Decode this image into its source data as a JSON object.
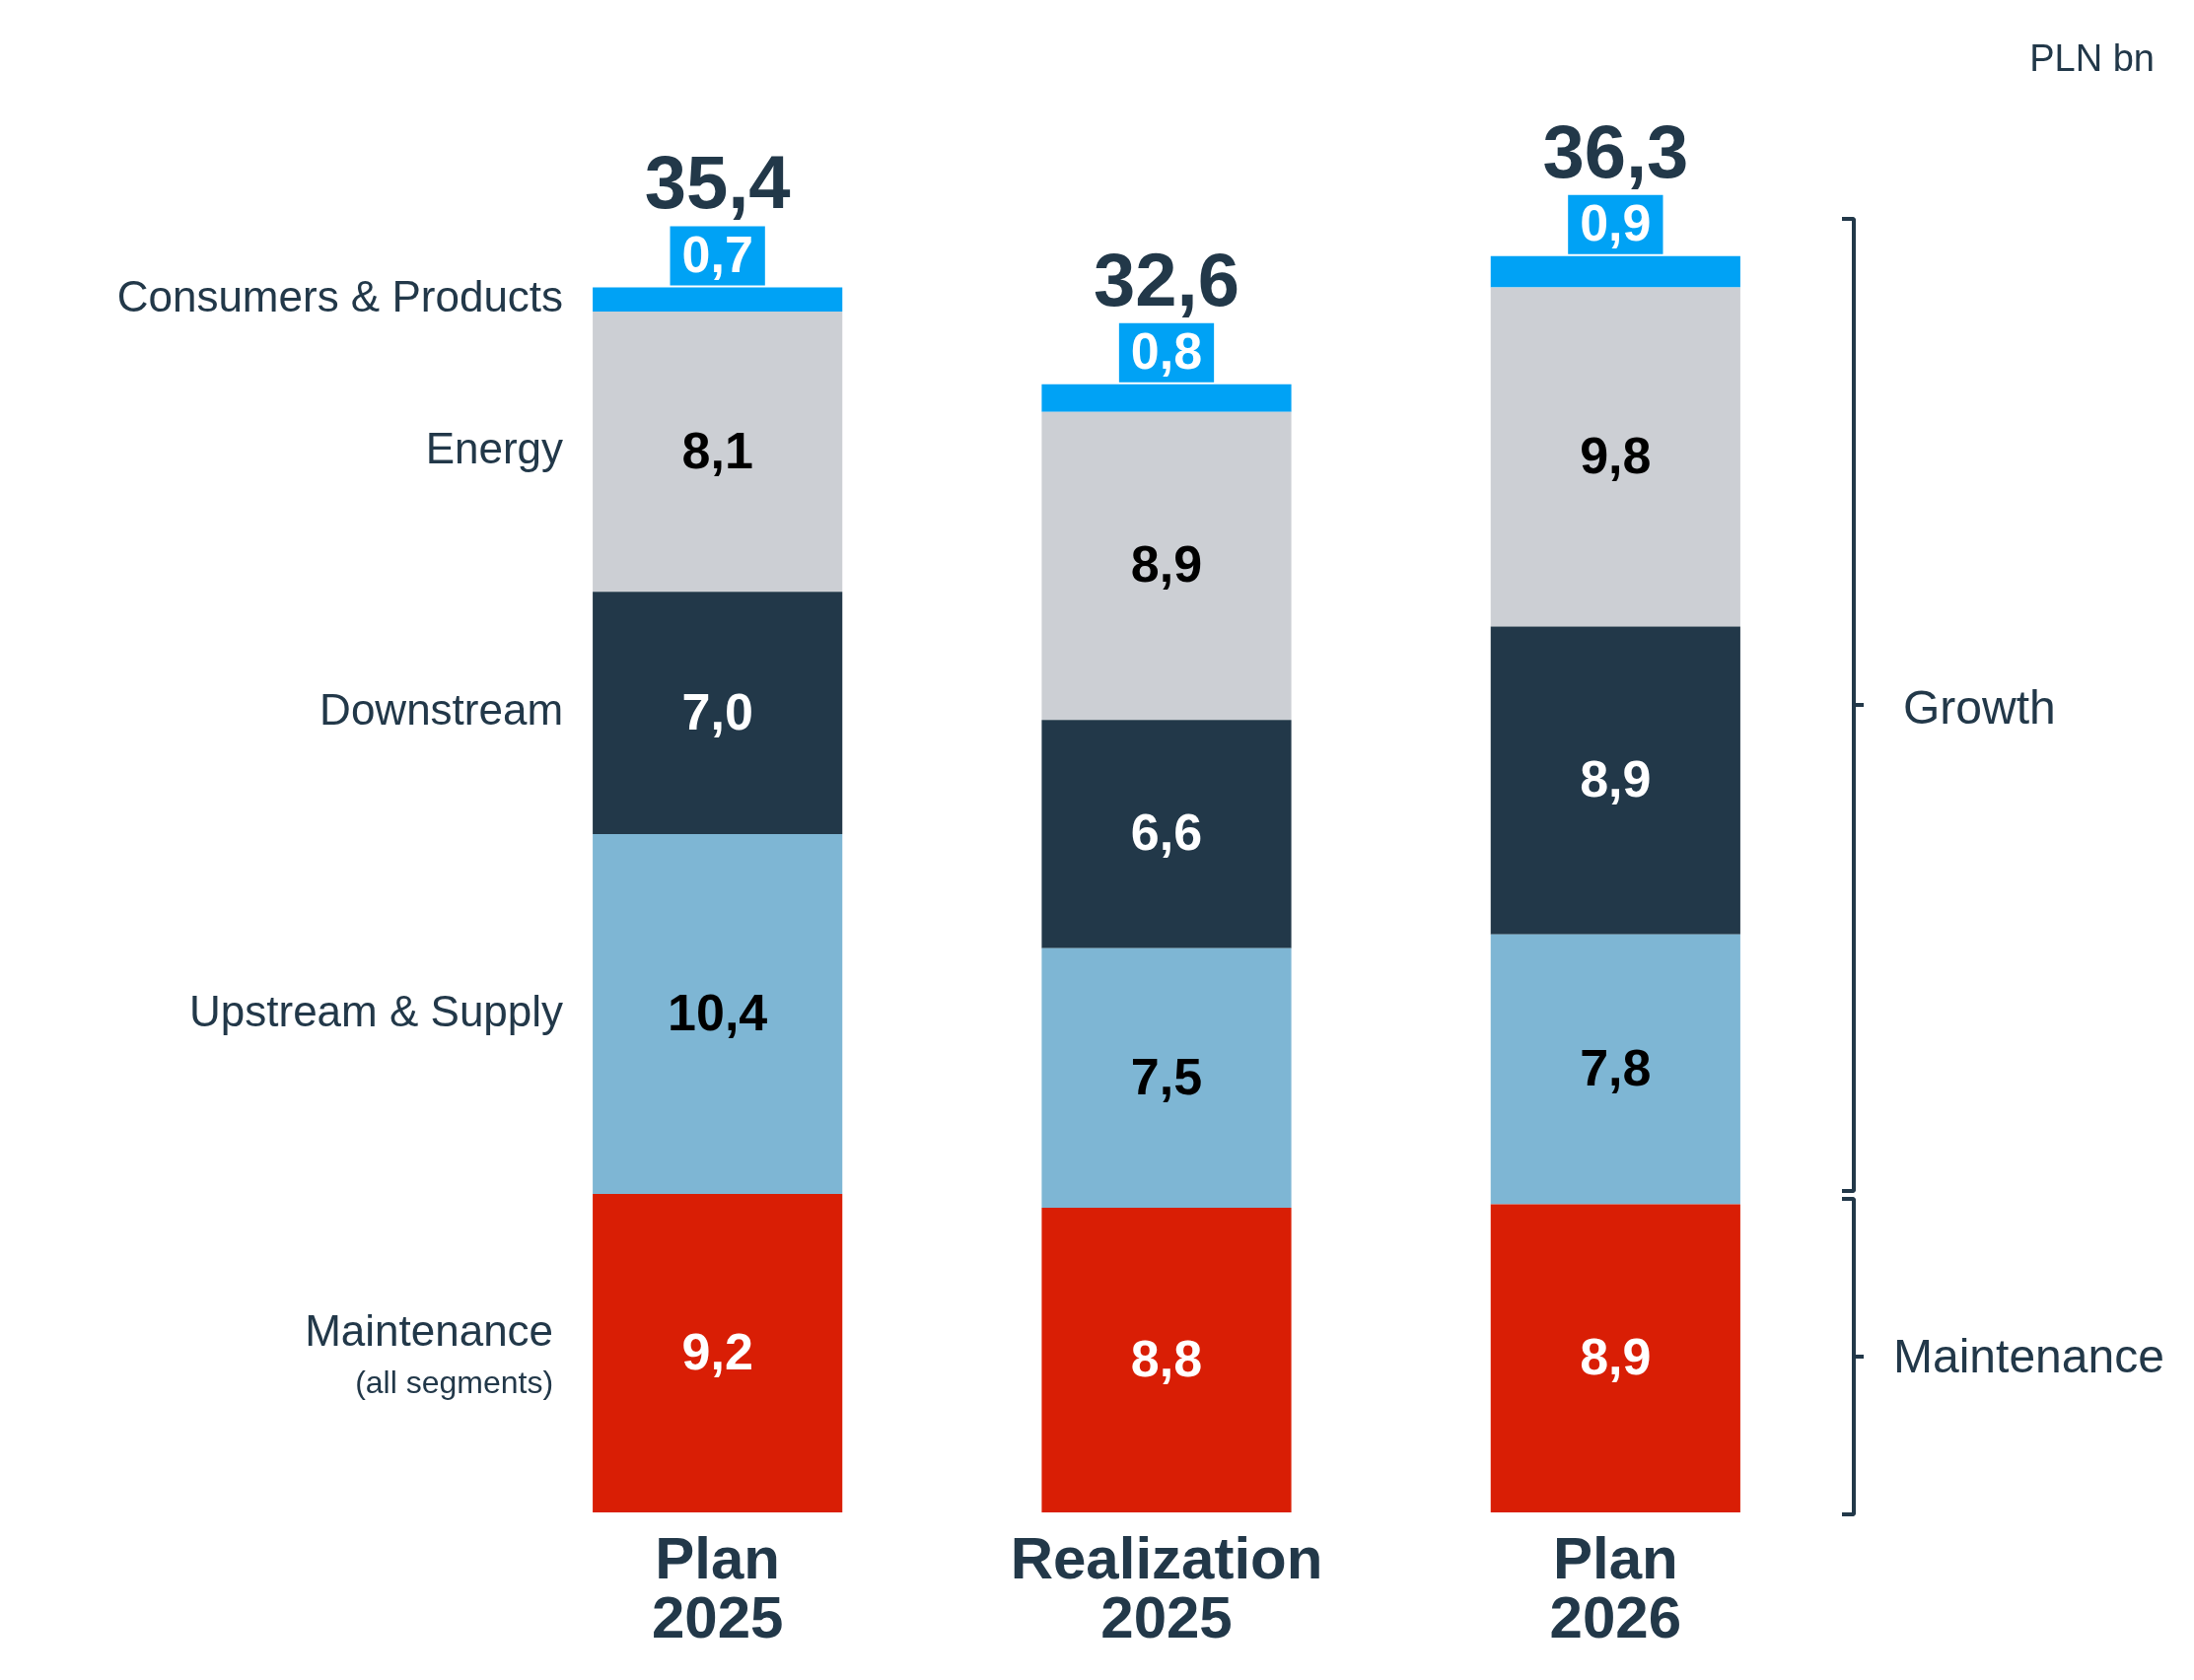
{
  "chart_data": {
    "type": "bar",
    "stacked": true,
    "categories": [
      "Plan 2025",
      "Realization 2025",
      "Plan 2026"
    ],
    "series": [
      {
        "name": "Maintenance (all segments)",
        "color": "#d91e05",
        "values": [
          9.2,
          8.8,
          8.9
        ],
        "value_labels": [
          "9,2",
          "8,8",
          "8,9"
        ]
      },
      {
        "name": "Upstream & Supply",
        "color": "#7eb6d4",
        "values": [
          10.4,
          7.5,
          7.8
        ],
        "value_labels": [
          "10,4",
          "7,5",
          "7,8"
        ]
      },
      {
        "name": "Downstream",
        "color": "#223849",
        "values": [
          7.0,
          6.6,
          8.9
        ],
        "value_labels": [
          "7,0",
          "6,6",
          "8,9"
        ]
      },
      {
        "name": "Energy",
        "color": "#cccfd4",
        "values": [
          8.1,
          8.9,
          9.8
        ],
        "value_labels": [
          "8,1",
          "8,9",
          "9,8"
        ]
      },
      {
        "name": "Consumers & Products",
        "color": "#00a2f5",
        "values": [
          0.7,
          0.8,
          0.9
        ],
        "value_labels": [
          "0,7",
          "0,8",
          "0,9"
        ]
      }
    ],
    "totals": [
      "35,4",
      "32,6",
      "36,3"
    ],
    "annotations": [
      "PLN bn",
      "Growth",
      "Maintenance"
    ],
    "legend": false,
    "grid": false,
    "tick_labels": "x"
  }
}
